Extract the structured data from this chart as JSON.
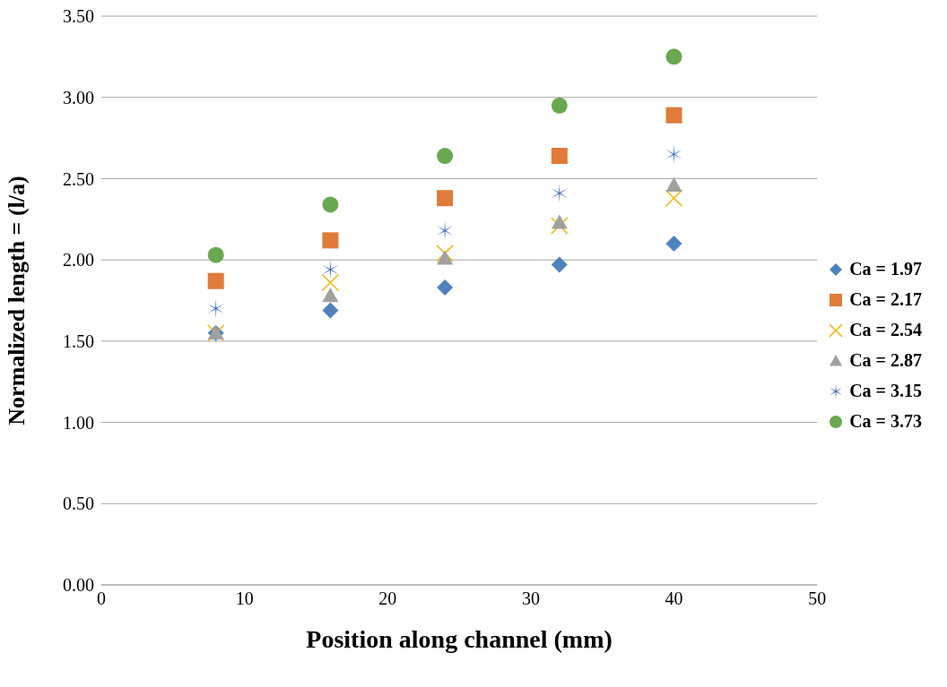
{
  "chart_data": {
    "type": "scatter",
    "xlabel": "Position along channel (mm)",
    "ylabel": "Normalized length = (l/a)",
    "x": [
      8,
      16,
      24,
      32,
      40
    ],
    "series": [
      {
        "name": "Ca = 1.97",
        "color": "#4f81bd",
        "marker": "diamond",
        "values": [
          1.55,
          1.69,
          1.83,
          1.97,
          2.1
        ]
      },
      {
        "name": "Ca = 2.17",
        "color": "#e07b39",
        "marker": "square",
        "values": [
          1.87,
          2.12,
          2.38,
          2.64,
          2.89
        ]
      },
      {
        "name": "Ca = 2.54",
        "color": "#f2b90f",
        "marker": "cross",
        "values": [
          1.55,
          1.86,
          2.04,
          2.21,
          2.38
        ]
      },
      {
        "name": "Ca = 2.87",
        "color": "#a0a0a0",
        "marker": "triangle",
        "values": [
          1.55,
          1.78,
          2.01,
          2.23,
          2.46
        ]
      },
      {
        "name": "Ca = 3.15",
        "color": "#4a72c4",
        "values": [
          1.7,
          1.94,
          2.18,
          2.41,
          2.65
        ]
      },
      {
        "name": "Ca = 3.73",
        "color": "#6aa84f",
        "marker": "circle",
        "values": [
          2.03,
          2.34,
          2.64,
          2.95,
          3.25
        ]
      }
    ],
    "xlim": [
      0,
      50
    ],
    "xticks": [
      0,
      10,
      20,
      30,
      40,
      50
    ],
    "ylim": [
      0,
      3.5
    ],
    "yticks": [
      {
        "value": 0,
        "label": "0.00"
      },
      {
        "value": 0.5,
        "label": "0.50"
      },
      {
        "value": 1,
        "label": "1.00"
      },
      {
        "value": 1.5,
        "label": "1.50"
      },
      {
        "value": 2,
        "label": "2.00"
      },
      {
        "value": 2.5,
        "label": "2.50"
      },
      {
        "value": 3,
        "label": "3.00"
      },
      {
        "value": 3.5,
        "label": "3.50"
      }
    ],
    "grid": "y",
    "legend": "right"
  }
}
